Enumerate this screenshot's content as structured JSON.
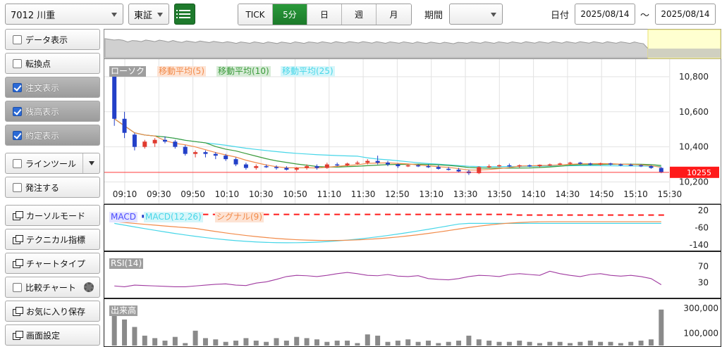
{
  "header": {
    "symbol": "7012 川重",
    "market": "東証",
    "period_tabs": [
      "TICK",
      "5分",
      "日",
      "週",
      "月"
    ],
    "active_tab": "5分",
    "period_label": "期間",
    "period_value": "",
    "date_label": "日付",
    "date_from": "2025/08/14",
    "date_sep": "～",
    "date_to": "2025/08/14"
  },
  "sidebar": {
    "items": [
      {
        "label": "データ表示",
        "checked": false,
        "type": "check"
      },
      {
        "label": "転換点",
        "checked": false,
        "type": "check"
      },
      {
        "label": "注文表示",
        "checked": true,
        "type": "check"
      },
      {
        "label": "残高表示",
        "checked": true,
        "type": "check"
      },
      {
        "label": "約定表示",
        "checked": true,
        "type": "check"
      },
      {
        "label": "ラインツール",
        "checked": false,
        "type": "check-dropdown"
      },
      {
        "label": "発注する",
        "checked": false,
        "type": "check"
      },
      {
        "label": "カーソルモード",
        "type": "window"
      },
      {
        "label": "テクニカル指標",
        "type": "window"
      },
      {
        "label": "チャートタイプ",
        "type": "window"
      },
      {
        "label": "比較チャート",
        "checked": false,
        "type": "check-gear"
      },
      {
        "label": "お気に入り保存",
        "type": "window"
      },
      {
        "label": "画面設定",
        "type": "window"
      }
    ]
  },
  "chart_data": {
    "type": "candlestick",
    "legend": [
      {
        "name": "ローソク",
        "color": "#9e9e9e"
      },
      {
        "name": "移動平均(5)",
        "color": "#f28b4a"
      },
      {
        "name": "移動平均(10)",
        "color": "#3a9a3a"
      },
      {
        "name": "移動平均(25)",
        "color": "#47d6e8"
      }
    ],
    "y_ticks": [
      "10,800",
      "10,600",
      "10,400",
      "10,200"
    ],
    "y_tick_values": [
      10800,
      10600,
      10400,
      10200
    ],
    "ylim": [
      10150,
      10880
    ],
    "last_price": "10255",
    "x_ticks": [
      "09:10",
      "09:30",
      "09:50",
      "10:10",
      "10:30",
      "10:50",
      "11:10",
      "11:30",
      "12:50",
      "13:10",
      "13:30",
      "13:50",
      "14:10",
      "14:30",
      "14:50",
      "15:10",
      "15:30"
    ],
    "candles": [
      [
        10830,
        10840,
        10520,
        10560
      ],
      [
        10560,
        10600,
        10450,
        10480
      ],
      [
        10470,
        10480,
        10380,
        10400
      ],
      [
        10400,
        10440,
        10390,
        10430
      ],
      [
        10420,
        10450,
        10400,
        10440
      ],
      [
        10440,
        10460,
        10420,
        10430
      ],
      [
        10430,
        10440,
        10390,
        10400
      ],
      [
        10400,
        10410,
        10350,
        10360
      ],
      [
        10360,
        10380,
        10340,
        10370
      ],
      [
        10370,
        10380,
        10340,
        10360
      ],
      [
        10360,
        10370,
        10330,
        10350
      ],
      [
        10350,
        10360,
        10320,
        10330
      ],
      [
        10330,
        10340,
        10290,
        10300
      ],
      [
        10300,
        10310,
        10270,
        10280
      ],
      [
        10280,
        10300,
        10270,
        10290
      ],
      [
        10290,
        10300,
        10280,
        10285
      ],
      [
        10285,
        10295,
        10270,
        10280
      ],
      [
        10280,
        10290,
        10265,
        10270
      ],
      [
        10270,
        10285,
        10260,
        10280
      ],
      [
        10280,
        10300,
        10270,
        10290
      ],
      [
        10290,
        10300,
        10270,
        10280
      ],
      [
        10280,
        10310,
        10275,
        10300
      ],
      [
        10300,
        10310,
        10290,
        10295
      ],
      [
        10295,
        10310,
        10290,
        10305
      ],
      [
        10305,
        10320,
        10300,
        10310
      ],
      [
        10310,
        10330,
        10300,
        10320
      ],
      [
        10320,
        10350,
        10300,
        10310
      ],
      [
        10310,
        10320,
        10290,
        10300
      ],
      [
        10300,
        10305,
        10280,
        10290
      ],
      [
        10290,
        10300,
        10285,
        10295
      ],
      [
        10295,
        10300,
        10285,
        10290
      ],
      [
        10290,
        10300,
        10280,
        10285
      ],
      [
        10285,
        10295,
        10270,
        10275
      ],
      [
        10275,
        10285,
        10265,
        10270
      ],
      [
        10270,
        10280,
        10255,
        10260
      ],
      [
        10260,
        10270,
        10240,
        10250
      ],
      [
        10250,
        10290,
        10245,
        10285
      ],
      [
        10285,
        10300,
        10280,
        10290
      ],
      [
        10290,
        10300,
        10285,
        10295
      ],
      [
        10295,
        10305,
        10285,
        10290
      ],
      [
        10290,
        10300,
        10280,
        10295
      ],
      [
        10295,
        10300,
        10285,
        10290
      ],
      [
        10290,
        10300,
        10285,
        10298
      ],
      [
        10298,
        10305,
        10290,
        10300
      ],
      [
        10300,
        10310,
        10295,
        10305
      ],
      [
        10305,
        10315,
        10300,
        10310
      ],
      [
        10310,
        10315,
        10300,
        10305
      ],
      [
        10305,
        10310,
        10295,
        10300
      ],
      [
        10300,
        10310,
        10295,
        10305
      ],
      [
        10305,
        10310,
        10295,
        10300
      ],
      [
        10300,
        10305,
        10290,
        10298
      ],
      [
        10298,
        10305,
        10290,
        10295
      ],
      [
        10295,
        10300,
        10285,
        10290
      ],
      [
        10290,
        10295,
        10275,
        10280
      ],
      [
        10280,
        10285,
        10250,
        10255
      ]
    ],
    "macd": {
      "legend": [
        {
          "name": "MACD",
          "color": "#4a4aff"
        },
        {
          "name": "MACD(12,26)",
          "color": "#47d6e8"
        },
        {
          "name": "シグナル(9)",
          "color": "#f28b4a"
        }
      ],
      "y_ticks": [
        "20",
        "-60",
        "-140"
      ],
      "y_tick_values": [
        20,
        -60,
        -140
      ],
      "ylim": [
        -150,
        30
      ]
    },
    "rsi": {
      "legend": [
        {
          "name": "RSI(14)",
          "color": "#9e9e9e"
        }
      ],
      "y_ticks": [
        "70",
        "30"
      ],
      "y_tick_values": [
        70,
        30
      ],
      "ylim": [
        0,
        100
      ],
      "values": [
        22,
        20,
        24,
        23,
        22,
        21,
        20,
        20,
        22,
        24,
        26,
        27,
        24,
        23,
        29,
        32,
        38,
        45,
        48,
        47,
        45,
        48,
        52,
        55,
        52,
        48,
        47,
        50,
        46,
        45,
        47,
        40,
        38,
        37,
        40,
        45,
        48,
        47,
        45,
        50,
        52,
        50,
        48,
        58,
        52,
        48,
        45,
        50,
        52,
        48,
        46,
        48,
        45,
        40,
        25
      ]
    },
    "volume": {
      "legend": [
        {
          "name": "出来高",
          "color": "#9e9e9e"
        }
      ],
      "y_ticks": [
        "300,000",
        "100,000"
      ],
      "y_tick_values": [
        300000,
        100000
      ],
      "ylim": [
        0,
        340000
      ],
      "values": [
        310000,
        210000,
        150000,
        80000,
        60000,
        40000,
        70000,
        20000,
        120000,
        60000,
        50000,
        30000,
        40000,
        60000,
        40000,
        30000,
        60000,
        40000,
        70000,
        60000,
        50000,
        30000,
        40000,
        40000,
        20000,
        90000,
        80000,
        30000,
        40000,
        50000,
        30000,
        40000,
        20000,
        30000,
        40000,
        80000,
        50000,
        40000,
        30000,
        30000,
        40000,
        30000,
        20000,
        30000,
        30000,
        20000,
        30000,
        40000,
        30000,
        30000,
        20000,
        30000,
        40000,
        50000,
        290000
      ]
    }
  }
}
